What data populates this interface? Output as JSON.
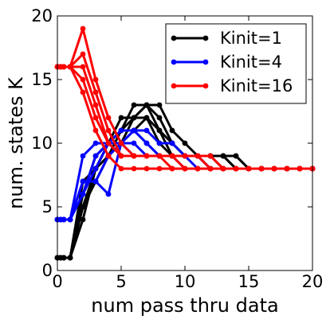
{
  "chart_data": {
    "type": "line",
    "xlabel": "num pass thru data",
    "ylabel": "num. states K",
    "xlim": [
      0,
      20
    ],
    "ylim": [
      0,
      20
    ],
    "xticks": [
      0,
      5,
      10,
      15,
      20
    ],
    "yticks": [
      0,
      5,
      10,
      15,
      20
    ],
    "grid": false,
    "legend_position": "top-right",
    "legend": [
      {
        "label": "Kinit=1",
        "color": "#000000"
      },
      {
        "label": "Kinit=4",
        "color": "#0000ff"
      },
      {
        "label": "Kinit=16",
        "color": "#ff0000"
      }
    ],
    "series": [
      {
        "group": 0,
        "color": "#000000",
        "x": [
          0,
          0.25,
          0.5,
          1,
          2,
          3,
          4,
          5,
          6,
          7,
          8,
          9,
          10,
          11,
          12,
          13,
          14,
          15,
          16,
          17,
          18,
          19,
          20
        ],
        "y": [
          1,
          1,
          1,
          1,
          4,
          8,
          10,
          12,
          12,
          13,
          13,
          11,
          10,
          9,
          9,
          9,
          9,
          8,
          8,
          8,
          8,
          8,
          8
        ]
      },
      {
        "group": 0,
        "color": "#000000",
        "x": [
          0,
          0.25,
          0.5,
          1,
          2,
          3,
          4,
          5,
          6,
          7,
          8,
          9,
          10,
          11,
          12,
          13,
          14,
          15,
          16,
          17,
          18,
          19,
          20
        ],
        "y": [
          1,
          1,
          1,
          1,
          5,
          8,
          9,
          11,
          13,
          13,
          11,
          10,
          9,
          9,
          9,
          9,
          9,
          8,
          8,
          8,
          8,
          8,
          8
        ]
      },
      {
        "group": 0,
        "color": "#000000",
        "x": [
          0,
          0.25,
          0.5,
          1,
          2,
          3,
          4,
          5,
          6,
          7,
          8,
          9,
          10,
          11,
          12,
          13,
          14,
          15,
          16,
          17,
          18,
          19,
          20
        ],
        "y": [
          1,
          1,
          1,
          1,
          6,
          9,
          10,
          11,
          12,
          13,
          12,
          10,
          9,
          9,
          9,
          9,
          8,
          8,
          8,
          8,
          8,
          8,
          8
        ]
      },
      {
        "group": 0,
        "color": "#000000",
        "x": [
          0,
          0.25,
          0.5,
          1,
          2,
          3,
          4,
          5,
          6,
          7,
          8,
          9,
          10,
          11,
          12,
          13,
          14,
          15,
          16,
          17,
          18,
          19,
          20
        ],
        "y": [
          1,
          1,
          1,
          1,
          7,
          8,
          10,
          11,
          11,
          12,
          11,
          9,
          9,
          9,
          9,
          8,
          8,
          8,
          8,
          8,
          8,
          8,
          8
        ]
      },
      {
        "group": 0,
        "color": "#000000",
        "x": [
          0,
          0.25,
          0.5,
          1,
          2,
          3,
          4,
          5,
          6,
          7,
          8,
          9,
          10,
          11,
          12,
          13,
          14,
          15,
          16,
          17,
          18,
          19,
          20
        ],
        "y": [
          1,
          1,
          1,
          1,
          5,
          7,
          9,
          10,
          12,
          12,
          10,
          9,
          9,
          9,
          9,
          9,
          8,
          8,
          8,
          8,
          8,
          8,
          8
        ]
      },
      {
        "group": 1,
        "color": "#0000ff",
        "x": [
          0,
          0.25,
          0.5,
          1,
          2,
          3,
          4,
          5,
          6,
          7,
          8,
          9,
          10,
          11,
          12,
          13,
          14,
          15,
          16,
          17,
          18,
          19,
          20
        ],
        "y": [
          4,
          4,
          4,
          4,
          9,
          10,
          10,
          10,
          11,
          11,
          10,
          10,
          9,
          9,
          8,
          8,
          8,
          8,
          8,
          8,
          8,
          8,
          8
        ]
      },
      {
        "group": 1,
        "color": "#0000ff",
        "x": [
          0,
          0.25,
          0.5,
          1,
          2,
          3,
          4,
          5,
          6,
          7,
          8,
          9,
          10,
          11,
          12,
          13,
          14,
          15,
          16,
          17,
          18,
          19,
          20
        ],
        "y": [
          4,
          4,
          4,
          4,
          7,
          7,
          6,
          10,
          11,
          10,
          9,
          9,
          9,
          9,
          8,
          8,
          8,
          8,
          8,
          8,
          8,
          8,
          8
        ]
      },
      {
        "group": 1,
        "color": "#0000ff",
        "x": [
          0,
          0.25,
          0.5,
          1,
          2,
          3,
          4,
          5,
          6,
          7,
          8,
          9,
          10,
          11,
          12,
          13,
          14,
          15,
          16,
          17,
          18,
          19,
          20
        ],
        "y": [
          4,
          4,
          4,
          4,
          6,
          8,
          10,
          11,
          11,
          10,
          9,
          9,
          9,
          9,
          8,
          8,
          8,
          8,
          8,
          8,
          8,
          8,
          8
        ]
      },
      {
        "group": 1,
        "color": "#0000ff",
        "x": [
          0,
          0.25,
          0.5,
          1,
          2,
          3,
          4,
          5,
          6,
          7,
          8,
          9,
          10,
          11,
          12,
          13,
          14,
          15,
          16,
          17,
          18,
          19,
          20
        ],
        "y": [
          4,
          4,
          4,
          4,
          7,
          7,
          9,
          10,
          10,
          9,
          9,
          9,
          9,
          8,
          8,
          8,
          8,
          8,
          8,
          8,
          8,
          8,
          8
        ]
      },
      {
        "group": 1,
        "color": "#0000ff",
        "x": [
          0,
          0.25,
          0.5,
          1,
          2,
          3,
          4,
          5,
          6,
          7,
          8,
          9,
          10,
          11,
          12,
          13,
          14,
          15,
          16,
          17,
          18,
          19,
          20
        ],
        "y": [
          4,
          4,
          4,
          4,
          6,
          9,
          10,
          10,
          9,
          9,
          9,
          9,
          8,
          8,
          8,
          8,
          8,
          8,
          8,
          8,
          8,
          8,
          8
        ]
      },
      {
        "group": 2,
        "color": "#ff0000",
        "x": [
          0,
          0.25,
          0.5,
          1,
          2,
          3,
          4,
          5,
          6,
          7,
          8,
          9,
          10,
          11,
          12,
          13,
          14,
          15,
          16,
          17,
          18,
          19,
          20
        ],
        "y": [
          16,
          16,
          16,
          16,
          19,
          15,
          12,
          10,
          9,
          9,
          9,
          9,
          9,
          9,
          9,
          8,
          8,
          8,
          8,
          8,
          8,
          8,
          8
        ]
      },
      {
        "group": 2,
        "color": "#ff0000",
        "x": [
          0,
          0.25,
          0.5,
          1,
          2,
          3,
          4,
          5,
          6,
          7,
          8,
          9,
          10,
          11,
          12,
          13,
          14,
          15,
          16,
          17,
          18,
          19,
          20
        ],
        "y": [
          16,
          16,
          16,
          16,
          17,
          14,
          11,
          9,
          9,
          9,
          9,
          9,
          9,
          9,
          8,
          8,
          8,
          8,
          8,
          8,
          8,
          8,
          8
        ]
      },
      {
        "group": 2,
        "color": "#ff0000",
        "x": [
          0,
          0.25,
          0.5,
          1,
          2,
          3,
          4,
          5,
          6,
          7,
          8,
          9,
          10,
          11,
          12,
          13,
          14,
          15,
          16,
          17,
          18,
          19,
          20
        ],
        "y": [
          16,
          16,
          16,
          16,
          16,
          13,
          10,
          9,
          9,
          9,
          9,
          9,
          8,
          8,
          8,
          8,
          8,
          8,
          8,
          8,
          8,
          8,
          8
        ]
      },
      {
        "group": 2,
        "color": "#ff0000",
        "x": [
          0,
          0.25,
          0.5,
          1,
          2,
          3,
          4,
          5,
          6,
          7,
          8,
          9,
          10,
          11,
          12,
          13,
          14,
          15,
          16,
          17,
          18,
          19,
          20
        ],
        "y": [
          16,
          16,
          16,
          16,
          15,
          12,
          10,
          9,
          9,
          9,
          9,
          8,
          8,
          8,
          8,
          8,
          8,
          8,
          8,
          8,
          8,
          8,
          8
        ]
      },
      {
        "group": 2,
        "color": "#ff0000",
        "x": [
          0,
          0.25,
          0.5,
          1,
          2,
          3,
          4,
          5,
          6,
          7,
          8,
          9,
          10,
          11,
          12,
          13,
          14,
          15,
          16,
          17,
          18,
          19,
          20
        ],
        "y": [
          16,
          16,
          16,
          16,
          14,
          11,
          9,
          8,
          8,
          8,
          8,
          8,
          8,
          8,
          8,
          8,
          8,
          8,
          8,
          8,
          8,
          8,
          8
        ]
      }
    ]
  }
}
